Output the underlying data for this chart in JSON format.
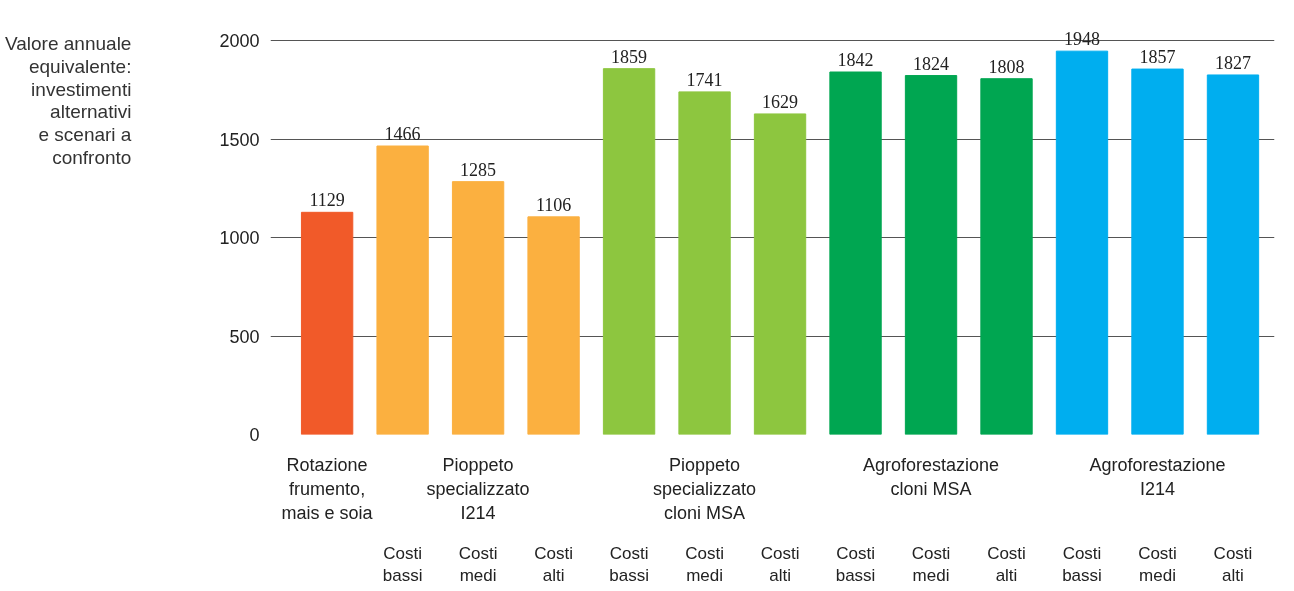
{
  "chart_data": {
    "type": "bar",
    "title": "Valore annuale\nequivalente:\ninvestimenti\nalternativi\ne scenari a\nconfronto",
    "categories": [
      "Rotazione\nfrumento,\nmais e soia",
      "Costi\nbassi",
      "Costi\nmedi",
      "Costi\nalti",
      "Costi\nbassi",
      "Costi\nmedi",
      "Costi\nalti",
      "Costi\nbassi",
      "Costi\nmedi",
      "Costi\nalti",
      "Costi\nbassi",
      "Costi\nmedi",
      "Costi\nalti"
    ],
    "values": [
      1129,
      1466,
      1285,
      1106,
      1859,
      1741,
      1629,
      1842,
      1824,
      1808,
      1948,
      1857,
      1827
    ],
    "colors": [
      "#f15a29",
      "#fbb040",
      "#fbb040",
      "#fbb040",
      "#8dc63f",
      "#8dc63f",
      "#8dc63f",
      "#00a651",
      "#00a651",
      "#00a651",
      "#00aeef",
      "#00aeef",
      "#00aeef"
    ],
    "annotations": [
      "Pioppeto\nspecializzato\nI214",
      "Pioppeto\nspecializzato\ncloni MSA",
      "Agroforestazione\ncloni MSA",
      "Agroforestazione\nI214"
    ],
    "ylim": [
      0,
      2000
    ],
    "yticks": [
      0,
      500,
      1000,
      1500,
      2000
    ],
    "grid": "y",
    "data_labels": true
  }
}
